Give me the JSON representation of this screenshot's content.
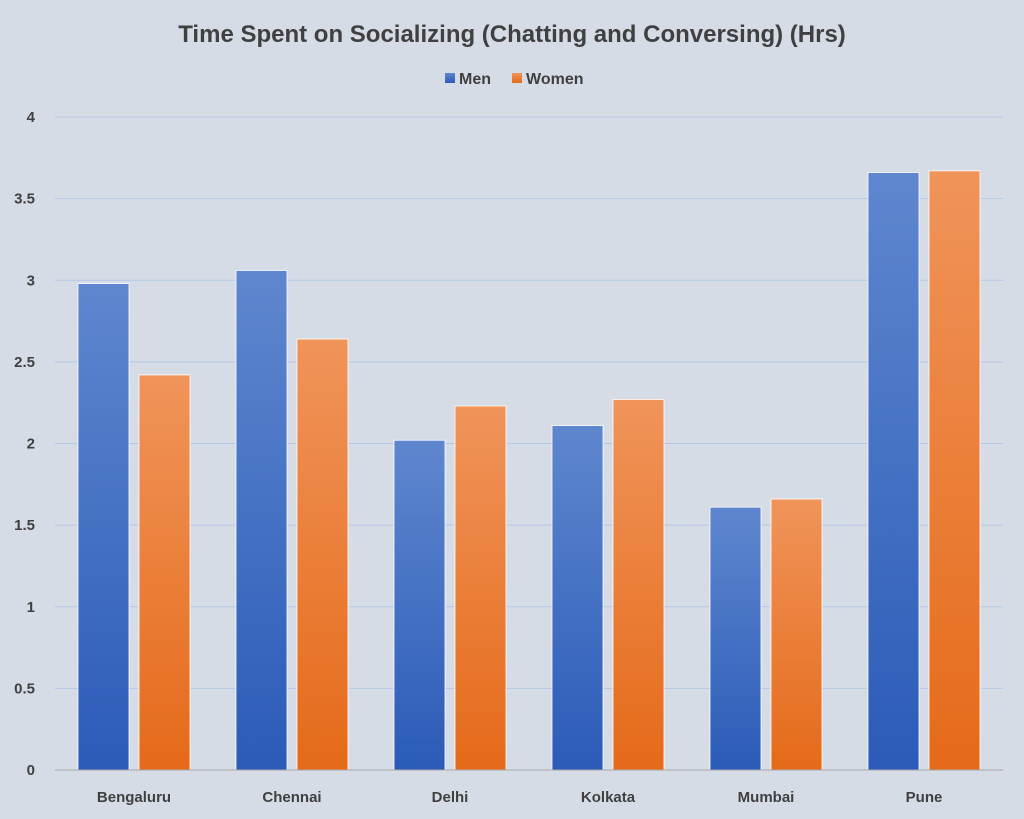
{
  "chart_data": {
    "type": "bar",
    "title": "Time Spent on Socializing (Chatting and Conversing) (Hrs)",
    "xlabel": "",
    "ylabel": "",
    "categories": [
      "Bengaluru",
      "Chennai",
      "Delhi",
      "Kolkata",
      "Mumbai",
      "Pune"
    ],
    "series": [
      {
        "name": "Men",
        "values": [
          2.98,
          3.06,
          2.02,
          2.11,
          1.61,
          3.66
        ],
        "color": "#4472c4"
      },
      {
        "name": "Women",
        "values": [
          2.42,
          2.64,
          2.23,
          2.27,
          1.66,
          3.67
        ],
        "color": "#ed7d31"
      }
    ],
    "ylim": [
      0,
      4
    ],
    "yticks": [
      "0",
      "0.5",
      "1",
      "1.5",
      "2",
      "2.5",
      "3",
      "3.5",
      "4"
    ],
    "grid": true,
    "legend_position": "top"
  }
}
